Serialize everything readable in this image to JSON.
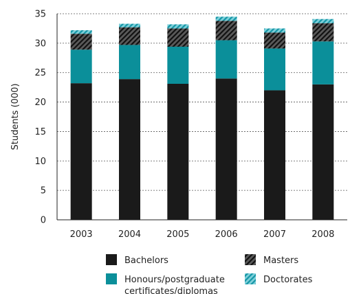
{
  "chart_data": {
    "type": "bar",
    "stacked": true,
    "categories": [
      "2003",
      "2004",
      "2005",
      "2006",
      "2007",
      "2008"
    ],
    "series": [
      {
        "name": "Bachelors",
        "values": [
          23.2,
          23.9,
          23.1,
          24.0,
          22.0,
          23.0
        ],
        "color": "#1a1a1a",
        "pattern": "solid"
      },
      {
        "name": "Honours/postgraduate certificates/diplomas",
        "values": [
          5.7,
          5.8,
          6.3,
          6.5,
          7.1,
          7.3
        ],
        "color": "#0b8f9a",
        "pattern": "solid"
      },
      {
        "name": "Masters",
        "values": [
          2.7,
          3.0,
          3.1,
          3.3,
          2.7,
          3.1
        ],
        "color": "#2b2b2b",
        "pattern": "diagonal-hatch"
      },
      {
        "name": "Doctorates",
        "values": [
          0.6,
          0.6,
          0.7,
          0.7,
          0.7,
          0.7
        ],
        "color": "#1fa7b6",
        "pattern": "diagonal-hatch"
      }
    ],
    "ylabel": "Students (000)",
    "xlabel": "",
    "ylim": [
      0,
      35
    ],
    "yticks": [
      0,
      5,
      10,
      15,
      20,
      25,
      30,
      35
    ],
    "grid": true,
    "legend_lines": [
      [
        "Bachelors"
      ],
      [
        "Honours/postgraduate",
        "certificates/diplomas"
      ],
      [
        "Masters"
      ],
      [
        "Doctorates"
      ]
    ]
  }
}
